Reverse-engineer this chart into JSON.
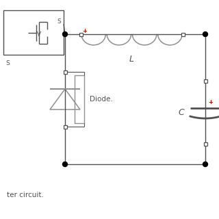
{
  "bg_color": "#ffffff",
  "line_color": "#909090",
  "dark_line": "#505050",
  "red_color": "#cc0000",
  "node_color": "#000000",
  "title_text": "ter circuit.",
  "label_L": "L",
  "label_C": "C",
  "label_Diode": "Diode.",
  "label_S": "S",
  "figsize": [
    3.2,
    3.2
  ],
  "dpi": 100
}
